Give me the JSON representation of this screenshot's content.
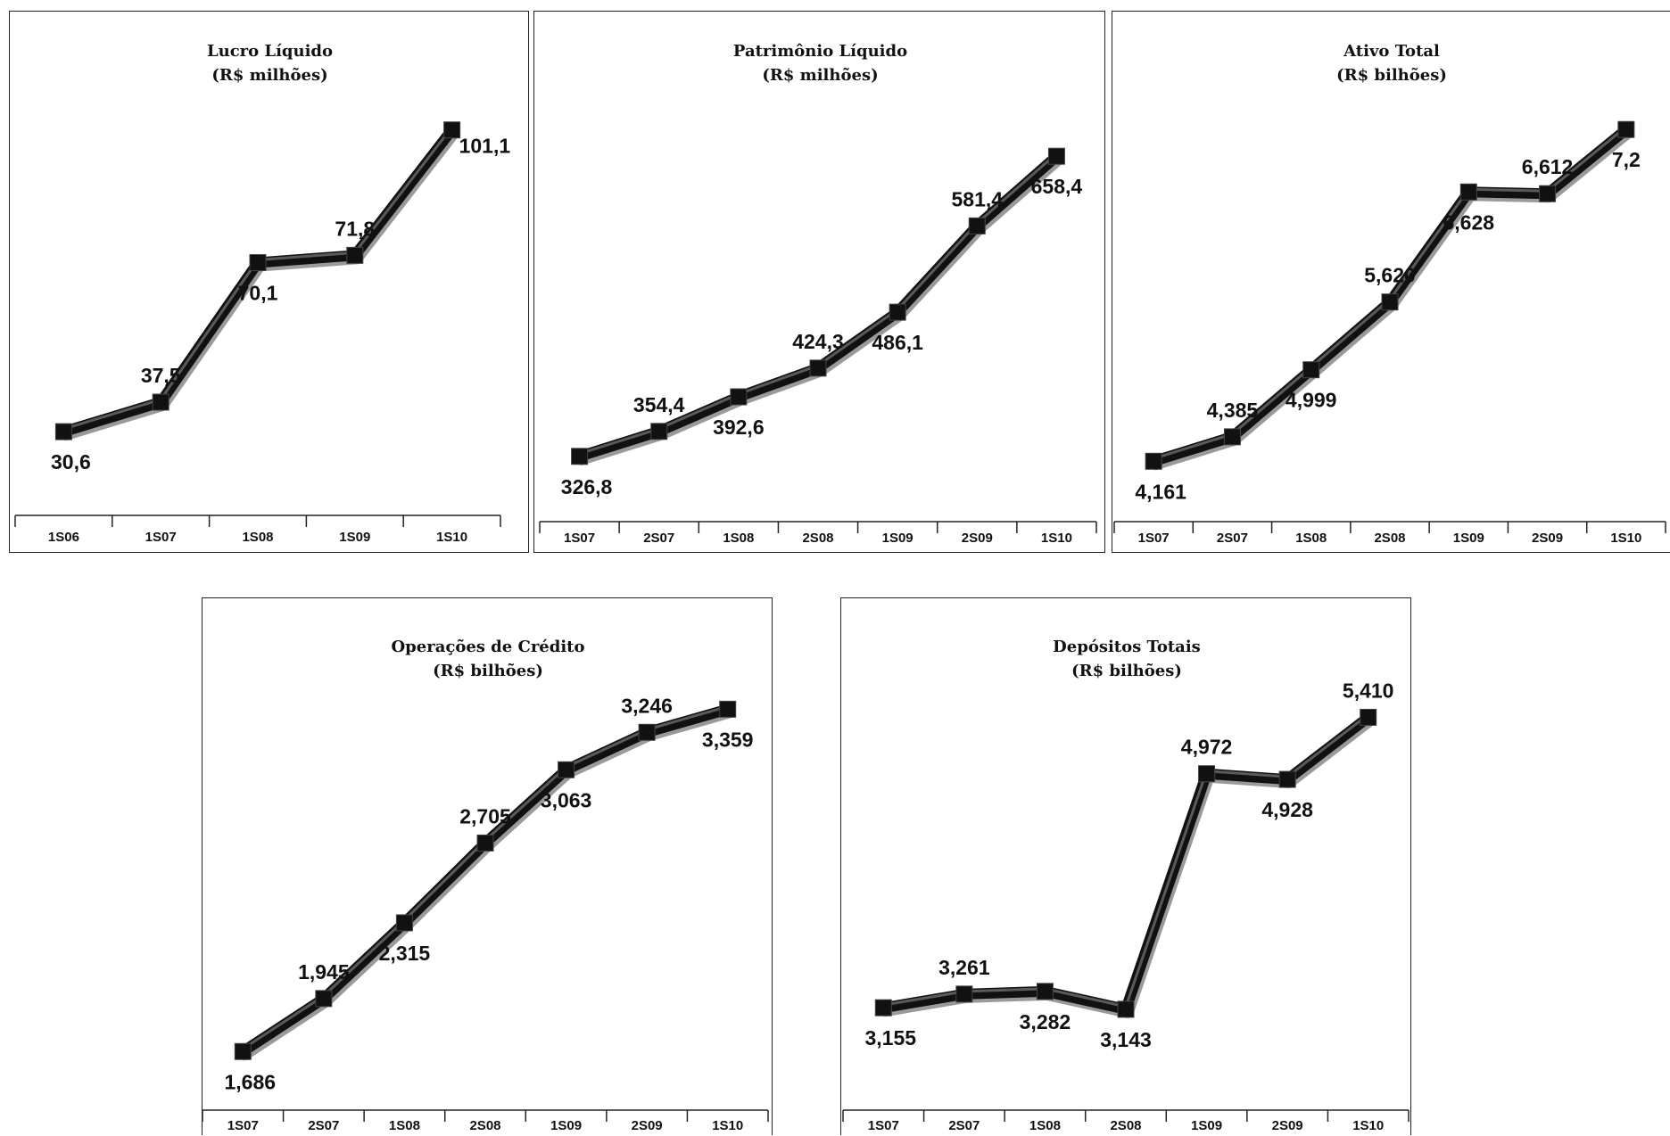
{
  "chart_data": [
    {
      "type": "line",
      "title": "Lucro Líquido",
      "subtitle": "(R$ milhões)",
      "categories": [
        "1S06",
        "1S07",
        "1S08",
        "1S09",
        "1S10"
      ],
      "values": [
        30.6,
        37.5,
        70.1,
        71.8,
        101.1
      ],
      "value_labels": [
        "30,6",
        "37,5",
        "70,1",
        "71,8",
        "101,1"
      ],
      "label_side": [
        "below",
        "above",
        "below",
        "above",
        "right"
      ],
      "ylim": [
        25,
        105
      ]
    },
    {
      "type": "line",
      "title": "Patrimônio Líquido",
      "subtitle": "(R$ milhões)",
      "categories": [
        "1S07",
        "2S07",
        "1S08",
        "2S08",
        "1S09",
        "2S09",
        "1S10"
      ],
      "values": [
        326.8,
        354.4,
        392.6,
        424.3,
        486.1,
        581.4,
        658.4
      ],
      "value_labels": [
        "326,8",
        "354,4",
        "392,6",
        "424,3",
        "486,1",
        "581,4",
        "658,4"
      ],
      "label_side": [
        "below",
        "above",
        "below",
        "above",
        "below",
        "above",
        "below"
      ],
      "ylim": [
        300,
        700
      ]
    },
    {
      "type": "line",
      "title": "Ativo Total",
      "subtitle": "(R$ bilhões)",
      "categories": [
        "1S07",
        "2S07",
        "1S08",
        "2S08",
        "1S09",
        "2S09",
        "1S10"
      ],
      "values": [
        4.161,
        4.385,
        4.999,
        5.62,
        6.628,
        6.612,
        7.2
      ],
      "value_labels": [
        "4,161",
        "4,385",
        "4,999",
        "5,620",
        "6,628",
        "6,612",
        "7,2"
      ],
      "label_side": [
        "below",
        "above",
        "below",
        "above",
        "below",
        "above",
        "below"
      ],
      "ylim": [
        4.0,
        7.3
      ]
    },
    {
      "type": "line",
      "title": "Operações de Crédito",
      "subtitle": "(R$ bilhões)",
      "categories": [
        "1S07",
        "2S07",
        "1S08",
        "2S08",
        "1S09",
        "2S09",
        "1S10"
      ],
      "values": [
        1.686,
        1.945,
        2.315,
        2.705,
        3.063,
        3.246,
        3.359
      ],
      "value_labels": [
        "1,686",
        "1,945",
        "2,315",
        "2,705",
        "3,063",
        "3,246",
        "3,359"
      ],
      "label_side": [
        "below",
        "above",
        "below",
        "above",
        "below",
        "above",
        "below"
      ],
      "ylim": [
        1.6,
        3.5
      ]
    },
    {
      "type": "line",
      "title": "Depósitos Totais",
      "subtitle": "(R$ bilhões)",
      "categories": [
        "1S07",
        "2S07",
        "1S08",
        "2S08",
        "1S09",
        "2S09",
        "1S10"
      ],
      "values": [
        3.155,
        3.261,
        3.282,
        3.143,
        4.972,
        4.928,
        5.41
      ],
      "value_labels": [
        "3,155",
        "3,261",
        "3,282",
        "3,143",
        "4,972",
        "4,928",
        "5,410"
      ],
      "label_side": [
        "below",
        "above",
        "below",
        "below",
        "above",
        "below",
        "above"
      ],
      "ylim": [
        2.9,
        5.6
      ]
    }
  ]
}
